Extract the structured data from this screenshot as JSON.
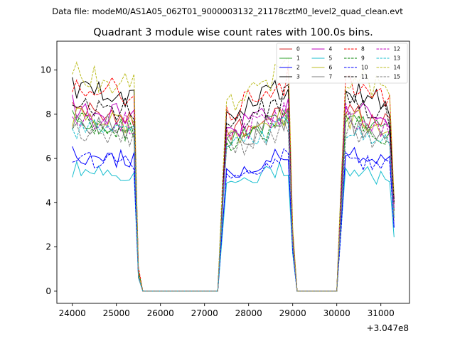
{
  "file_label": "Data file: modeM0/AS1A05_062T01_9000003132_21178cztM0_level2_quad_clean.evt",
  "chart_data": {
    "type": "line",
    "title": "Quadrant 3 module wise count rates with 100.0s bins.",
    "xlabel": "",
    "ylabel": "",
    "x_offset_label": "+3.047e8",
    "xlim": [
      23650,
      31650
    ],
    "ylim": [
      -0.55,
      11.3
    ],
    "x_ticks": [
      24000,
      25000,
      26000,
      27000,
      28000,
      29000,
      30000,
      31000
    ],
    "x_tick_labels": [
      "24000",
      "25000",
      "26000",
      "27000",
      "28000",
      "29000",
      "30000",
      "31000"
    ],
    "y_ticks": [
      0,
      2,
      4,
      6,
      8,
      10
    ],
    "y_tick_labels": [
      "0",
      "2",
      "4",
      "6",
      "8",
      "10"
    ],
    "legend_position": "top-right",
    "bin_start": 24000,
    "bin_step": 100,
    "n_bins": 74,
    "segments": [
      {
        "x_start": 24000,
        "x_end": 25400,
        "shape": "flat"
      },
      {
        "x_start": 25500,
        "x_end": 25500,
        "shape": "drop",
        "fraction": 0.1
      },
      {
        "x_start": 25600,
        "x_end": 27300,
        "shape": "zero"
      },
      {
        "x_start": 27400,
        "x_end": 27400,
        "shape": "ramp",
        "fraction": 0.45
      },
      {
        "x_start": 27500,
        "x_end": 28900,
        "shape": "rising"
      },
      {
        "x_start": 29000,
        "x_end": 29000,
        "shape": "drop",
        "fraction": 0.3
      },
      {
        "x_start": 29100,
        "x_end": 30000,
        "shape": "zero"
      },
      {
        "x_start": 30100,
        "x_end": 30100,
        "shape": "ramp",
        "fraction": 0.5
      },
      {
        "x_start": 30200,
        "x_end": 31200,
        "shape": "falling"
      },
      {
        "x_start": 31300,
        "x_end": 31300,
        "shape": "drop",
        "fraction": 0.45
      }
    ],
    "series": [
      {
        "name": "0",
        "color": "#d62728",
        "dash": "solid",
        "level": 8.2
      },
      {
        "name": "1",
        "color": "#2ca02c",
        "dash": "solid",
        "level": 7.8
      },
      {
        "name": "2",
        "color": "#0000ff",
        "dash": "solid",
        "level": 6.2
      },
      {
        "name": "3",
        "color": "#000000",
        "dash": "solid",
        "level": 9.1
      },
      {
        "name": "4",
        "color": "#bf00bf",
        "dash": "solid",
        "level": 8.3
      },
      {
        "name": "5",
        "color": "#17becf",
        "dash": "solid",
        "level": 5.5
      },
      {
        "name": "6",
        "color": "#bcbd22",
        "dash": "solid",
        "level": 7.9
      },
      {
        "name": "7",
        "color": "#7f7f7f",
        "dash": "solid",
        "level": 7.7
      },
      {
        "name": "8",
        "color": "#ff0000",
        "dash": "dashed",
        "level": 9.4
      },
      {
        "name": "9",
        "color": "#008000",
        "dash": "dashed",
        "level": 7.6
      },
      {
        "name": "10",
        "color": "#0000ff",
        "dash": "dashed",
        "level": 6.0
      },
      {
        "name": "11",
        "color": "#000000",
        "dash": "dashed",
        "level": 8.6
      },
      {
        "name": "12",
        "color": "#bf00bf",
        "dash": "dashed",
        "level": 8.0
      },
      {
        "name": "13",
        "color": "#17becf",
        "dash": "dashed",
        "level": 7.4
      },
      {
        "name": "14",
        "color": "#bcbd22",
        "dash": "dashed",
        "level": 9.8
      },
      {
        "name": "15",
        "color": "#7f7f7f",
        "dash": "dashed",
        "level": 7.3
      }
    ]
  }
}
